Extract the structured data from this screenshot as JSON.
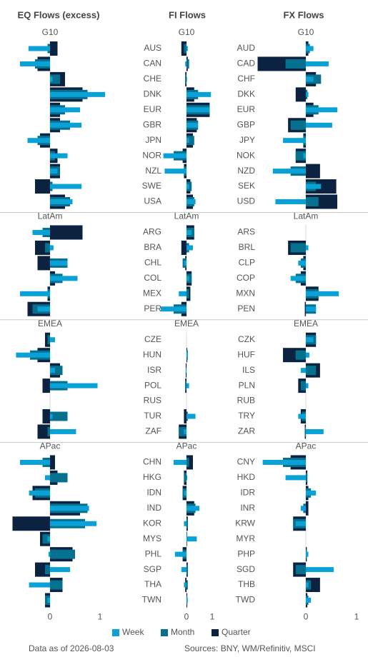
{
  "chart_data": [
    {
      "type": "bar",
      "orientation": "horizontal",
      "title": "EQ Flows (excess)",
      "xlim": [
        -0.76,
        1.15
      ],
      "xticks": [
        0,
        1
      ],
      "groups": [
        {
          "name": "G10"
        },
        {
          "name": "LatAm"
        },
        {
          "name": "EMEA"
        },
        {
          "name": "APac"
        }
      ],
      "series": [
        {
          "name": "Week",
          "color": "#0aa2d6",
          "values": [
            [
              -0.43,
              -0.6,
              0.05,
              1.1,
              0.6,
              0.63,
              -0.45,
              0.35,
              0.15,
              0.63,
              0.45
            ],
            [
              -0.35,
              0.07,
              0.35,
              0.55,
              -0.6,
              -0.25
            ],
            [
              0.1,
              -0.68,
              0.1,
              0.95,
              null,
              0.05,
              0.52
            ],
            [
              -0.6,
              -0.1,
              -0.42,
              0.78,
              0.93,
              -0.05,
              -0.03,
              0.4,
              -0.42,
              -0.05
            ]
          ]
        },
        {
          "name": "Month",
          "color": "#06708f",
          "values": [
            [
              -0.05,
              -0.3,
              0.2,
              0.75,
              0.3,
              0.4,
              -0.25,
              0.1,
              0.2,
              0.05,
              0.4
            ],
            [
              -0.15,
              -0.1,
              0.35,
              0.25,
              -0.05,
              -0.35
            ],
            [
              -0.05,
              -0.4,
              0.25,
              0.35,
              null,
              0.35,
              -0.05
            ],
            [
              -0.15,
              0.35,
              -0.3,
              0.75,
              0.7,
              -0.15,
              0.5,
              -0.1,
              0.25,
              -0.1
            ]
          ]
        },
        {
          "name": "Quarter",
          "color": "#0b2341",
          "values": [
            [
              0.15,
              -0.25,
              0.3,
              0.65,
              0.2,
              0.2,
              -0.2,
              0.15,
              0.2,
              -0.3,
              0.3
            ],
            [
              0.65,
              -0.3,
              -0.25,
              0.1,
              -0.05,
              -0.45
            ],
            [
              -0.1,
              -0.25,
              0.2,
              -0.15,
              null,
              -0.15,
              -0.25
            ],
            [
              0.1,
              0.15,
              -0.35,
              0.6,
              -0.75,
              -0.2,
              0.45,
              -0.3,
              0.25,
              -0.1
            ]
          ]
        }
      ]
    },
    {
      "type": "bar",
      "orientation": "horizontal",
      "title": "FI Flows",
      "xlim": [
        -1.05,
        1.0
      ],
      "xticks": [
        0,
        1
      ],
      "groups": [
        {
          "name": "G10",
          "categories": [
            "AUS",
            "CAN",
            "CHE",
            "DNK",
            "EUR",
            "GBR",
            "JPN",
            "NOR",
            "NZL",
            "SWE",
            "USA"
          ]
        },
        {
          "name": "LatAm",
          "categories": [
            "ARG",
            "BRA",
            "CHL",
            "COL",
            "MEX",
            "PER"
          ]
        },
        {
          "name": "EMEA",
          "categories": [
            "CZE",
            "HUN",
            "ISR",
            "POL",
            "RUS",
            "TUR",
            "ZAF"
          ]
        },
        {
          "name": "APac",
          "categories": [
            "CHN",
            "HKG",
            "IDN",
            "IND",
            "KOR",
            "MYS",
            "PHL",
            "SGP",
            "THA",
            "TWN"
          ]
        }
      ],
      "series": [
        {
          "color": "#0aa2d6",
          "values": [
            [
              0.05,
              -0.05,
              0.02,
              0.95,
              0.9,
              0.45,
              0.1,
              -0.9,
              -0.85,
              0.1,
              0.35
            ],
            [
              0.2,
              0.25,
              -0.1,
              0.1,
              -0.3,
              -1.0
            ],
            [
              null,
              0.05,
              -0.03,
              0.1,
              null,
              0.35,
              -0.1
            ],
            [
              -0.5,
              0.03,
              -0.1,
              0.5,
              -0.1,
              0.4,
              -0.45,
              -0.2,
              -0.1,
              0.05
            ]
          ]
        },
        {
          "color": "#06708f",
          "values": [
            [
              -0.1,
              0.1,
              -0.05,
              0.45,
              0.9,
              0.45,
              0.3,
              -0.5,
              -0.1,
              0.2,
              0.3
            ],
            [
              0.3,
              0.1,
              -0.15,
              0.2,
              0.1,
              -0.5
            ],
            [
              null,
              0.05,
              0,
              -0.05,
              null,
              0.05,
              -0.3
            ],
            [
              0.1,
              -0.1,
              -0.15,
              0.35,
              0.05,
              0.02,
              -0.15,
              0.05,
              0.05,
              0.03
            ]
          ]
        },
        {
          "color": "#0b2341",
          "values": [
            [
              -0.2,
              0.05,
              -0.05,
              0.3,
              0.9,
              0.4,
              0.25,
              -0.15,
              -0.1,
              0.15,
              0.25
            ],
            [
              0.3,
              -0.2,
              -0.05,
              0.2,
              0.15,
              -0.2
            ],
            [
              null,
              0.03,
              -0.03,
              -0.05,
              null,
              -0.1,
              -0.3
            ],
            [
              0.25,
              -0.1,
              -0.15,
              0.3,
              0.05,
              0.02,
              -0.15,
              0.05,
              -0.05,
              0.03
            ]
          ]
        }
      ]
    },
    {
      "type": "bar",
      "orientation": "horizontal",
      "title": "FX Flows",
      "xlim": [
        -0.97,
        1.0
      ],
      "xticks": [
        0,
        1
      ],
      "groups": [
        {
          "name": "G10",
          "categories": [
            "AUD",
            "CAD",
            "CHF",
            "DKK",
            "EUR",
            "GBP",
            "JPY",
            "NOK",
            "NZD",
            "SEK",
            "USD"
          ]
        },
        {
          "name": "LatAm",
          "categories": [
            "ARS",
            "BRL",
            "CLP",
            "COP",
            "MXN",
            "PEN"
          ]
        },
        {
          "name": "EMEA",
          "categories": [
            "CZK",
            "HUF",
            "ILS",
            "PLN",
            "RUB",
            "TRY",
            "ZAR"
          ]
        },
        {
          "name": "APac",
          "categories": [
            "CNY",
            "HKD",
            "IDR",
            "INR",
            "KRW",
            "MYR",
            "PHP",
            "SGD",
            "THB",
            "TWD"
          ]
        }
      ],
      "series": [
        {
          "color": "#0aa2d6",
          "values": [
            [
              0.15,
              0.45,
              0.15,
              0.05,
              0.62,
              0.52,
              -0.45,
              -0.05,
              -0.65,
              0.3,
              -0.6
            ],
            [
              null,
              0.05,
              -0.15,
              -0.3,
              0.65,
              0.2
            ],
            [
              0.15,
              0.07,
              -0.1,
              0.05,
              null,
              -0.15,
              0.35
            ],
            [
              -0.85,
              -0.4,
              0.2,
              -0.1,
              -0.2,
              0,
              0.05,
              0.55,
              0.05,
              0.1
            ]
          ]
        },
        {
          "color": "#06708f",
          "values": [
            [
              0.08,
              -0.4,
              0.3,
              0.03,
              0.25,
              -0.3,
              -0.05,
              -0.2,
              -0.3,
              0.2,
              0.25
            ],
            [
              null,
              -0.3,
              -0.1,
              -0.2,
              0.25,
              0.2
            ],
            [
              0.2,
              -0.2,
              0.2,
              -0.1,
              null,
              -0.08,
              -0.02
            ],
            [
              -0.45,
              0.03,
              0.1,
              -0.05,
              -0.25,
              0,
              0.02,
              -0.2,
              0.1,
              0.05
            ]
          ]
        },
        {
          "color": "#0b2341",
          "values": [
            [
              0.05,
              -0.95,
              0.2,
              -0.2,
              0.15,
              -0.35,
              -0.05,
              -0.2,
              0.28,
              0.6,
              0.62
            ],
            [
              null,
              -0.35,
              -0.05,
              -0.1,
              0.25,
              -0.02
            ],
            [
              0.2,
              -0.45,
              0.28,
              -0.15,
              null,
              -0.1,
              -0.02
            ],
            [
              -0.3,
              0.03,
              0.05,
              0.05,
              -0.25,
              0,
              0.02,
              -0.25,
              0.28,
              0.03
            ]
          ]
        }
      ]
    }
  ],
  "footer": {
    "data_as_of": "Data as of 2026-08-03",
    "sources": "Sources:  BNY, WM/Refinitiv, MSCI"
  }
}
